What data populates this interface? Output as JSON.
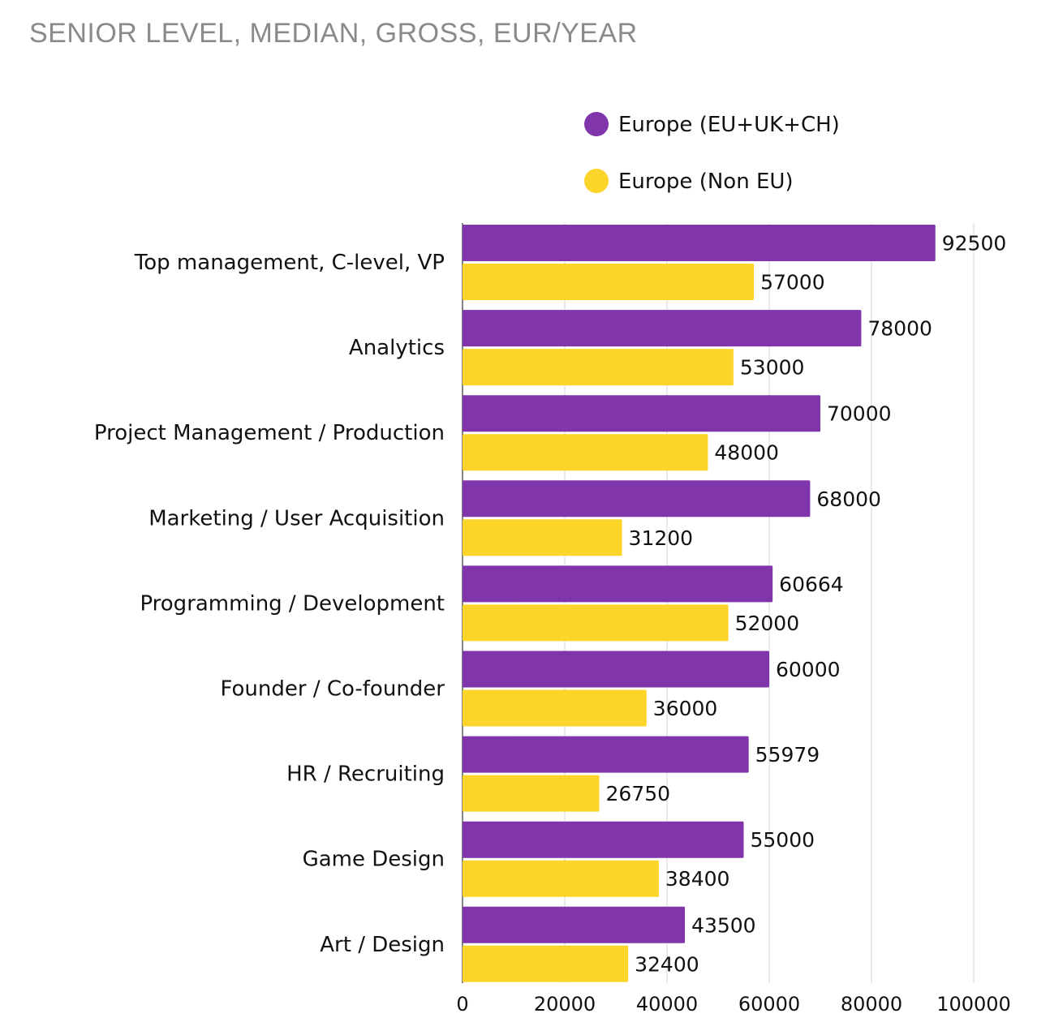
{
  "chart_data": {
    "type": "bar",
    "orientation": "horizontal",
    "title": "SENIOR LEVEL, MEDIAN, GROSS, EUR/YEAR",
    "categories": [
      "Top management, C-level, VP",
      "Analytics",
      "Project Management / Production",
      "Marketing / User Acquisition",
      "Programming / Development",
      "Founder / Co-founder",
      "HR / Recruiting",
      "Game Design",
      "Art / Design"
    ],
    "series": [
      {
        "name": "Europe (EU+UK+CH)",
        "color": "#8035ab",
        "values": [
          92500,
          78000,
          70000,
          68000,
          60664,
          60000,
          55979,
          55000,
          43500
        ]
      },
      {
        "name": "Europe (Non EU)",
        "color": "#fdd52a",
        "values": [
          57000,
          53000,
          48000,
          31200,
          52000,
          36000,
          26750,
          38400,
          32400
        ]
      }
    ],
    "xlim": [
      0,
      100000
    ],
    "xticks": [
      0,
      20000,
      40000,
      60000,
      80000,
      100000
    ],
    "xlabel": "",
    "ylabel": "",
    "grid": true,
    "legend": "top-right"
  }
}
